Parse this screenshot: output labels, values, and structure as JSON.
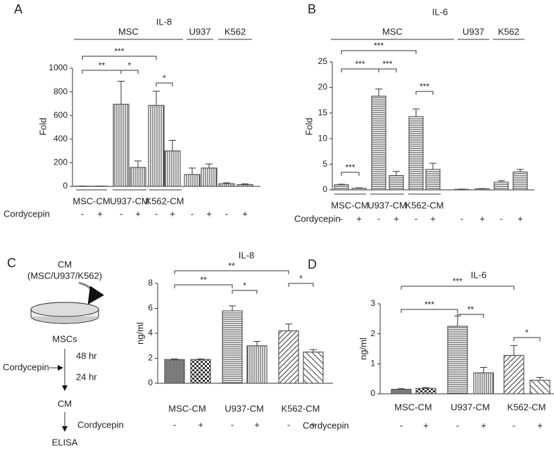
{
  "chart_data": [
    {
      "type": "bar",
      "panel": "A",
      "title": "IL-8",
      "ylabel": "Fold",
      "headers": [
        "MSC",
        "U937",
        "K562"
      ],
      "groups": [
        "MSC-CM",
        "U937-CM",
        "K562-CM"
      ],
      "row_label": "Cordycepin",
      "signs": [
        "-",
        "+",
        "-",
        "+",
        "-",
        "+",
        "-",
        "+",
        "-",
        "+"
      ],
      "values": [
        2,
        2,
        695,
        160,
        685,
        300,
        100,
        155,
        22,
        15
      ],
      "errors": [
        1,
        1,
        195,
        55,
        120,
        90,
        55,
        35,
        8,
        6
      ],
      "ylim": [
        0,
        1000
      ],
      "yticks": [
        0,
        200,
        400,
        600,
        800,
        1000
      ],
      "significance": [
        "***",
        "**",
        "*",
        "*"
      ],
      "color": "#555555"
    },
    {
      "type": "bar",
      "panel": "B",
      "title": "IL-6",
      "ylabel": "Fold",
      "headers": [
        "MSC",
        "U937",
        "K562"
      ],
      "groups": [
        "MSC-CM",
        "U937-CM",
        "K562-CM"
      ],
      "row_label": "Cordycepin",
      "signs": [
        "-",
        "+",
        "-",
        "+",
        "-",
        "+",
        "-",
        "+",
        "-",
        "+"
      ],
      "values": [
        1.0,
        0.3,
        18.3,
        2.8,
        14.3,
        4.0,
        0.1,
        0.2,
        1.5,
        3.5
      ],
      "errors": [
        0.1,
        0.1,
        1.4,
        0.8,
        1.5,
        1.2,
        0.05,
        0.05,
        0.3,
        0.5
      ],
      "ylim": [
        0,
        25
      ],
      "yticks": [
        0,
        5,
        10,
        15,
        20,
        25
      ],
      "significance": [
        "***",
        "***",
        "***",
        "***",
        "***"
      ],
      "color": "#555555"
    },
    {
      "type": "bar",
      "panel": "C",
      "title": "IL-8",
      "ylabel": "ng/ml",
      "groups": [
        "MSC-CM",
        "U937-CM",
        "K562-CM"
      ],
      "row_label": "Cordycepin",
      "signs": [
        "-",
        "+",
        "-",
        "+",
        "-",
        "+"
      ],
      "values": [
        1.9,
        1.9,
        5.8,
        3.0,
        4.2,
        2.5
      ],
      "errors": [
        0.05,
        0.05,
        0.4,
        0.35,
        0.55,
        0.2
      ],
      "ylim": [
        0,
        8
      ],
      "yticks": [
        0,
        2,
        4,
        6,
        8
      ],
      "significance": [
        "**",
        "**",
        "*",
        "*"
      ],
      "color": "#555555"
    },
    {
      "type": "bar",
      "panel": "D",
      "title": "IL-6",
      "ylabel": "ng/ml",
      "groups": [
        "MSC-CM",
        "U937-CM",
        "K562-CM"
      ],
      "row_label": "Cordycepin",
      "signs": [
        "-",
        "+",
        "-",
        "+",
        "-",
        "+"
      ],
      "values": [
        0.15,
        0.18,
        2.25,
        0.7,
        1.28,
        0.45
      ],
      "errors": [
        0.02,
        0.03,
        0.35,
        0.18,
        0.33,
        0.1
      ],
      "ylim": [
        0,
        3
      ],
      "yticks": [
        0,
        1,
        2,
        3
      ],
      "significance": [
        "***",
        "***",
        "**",
        "*"
      ],
      "color": "#555555"
    }
  ],
  "diagram": {
    "cm_top": "CM",
    "cm_sub": "(MSC/U937/K562)",
    "cells": "MSCs",
    "time1": "48 hr",
    "treatment": "Cordycepin",
    "time2": "24 hr",
    "cm_bottom": "CM",
    "assay": "ELISA"
  }
}
